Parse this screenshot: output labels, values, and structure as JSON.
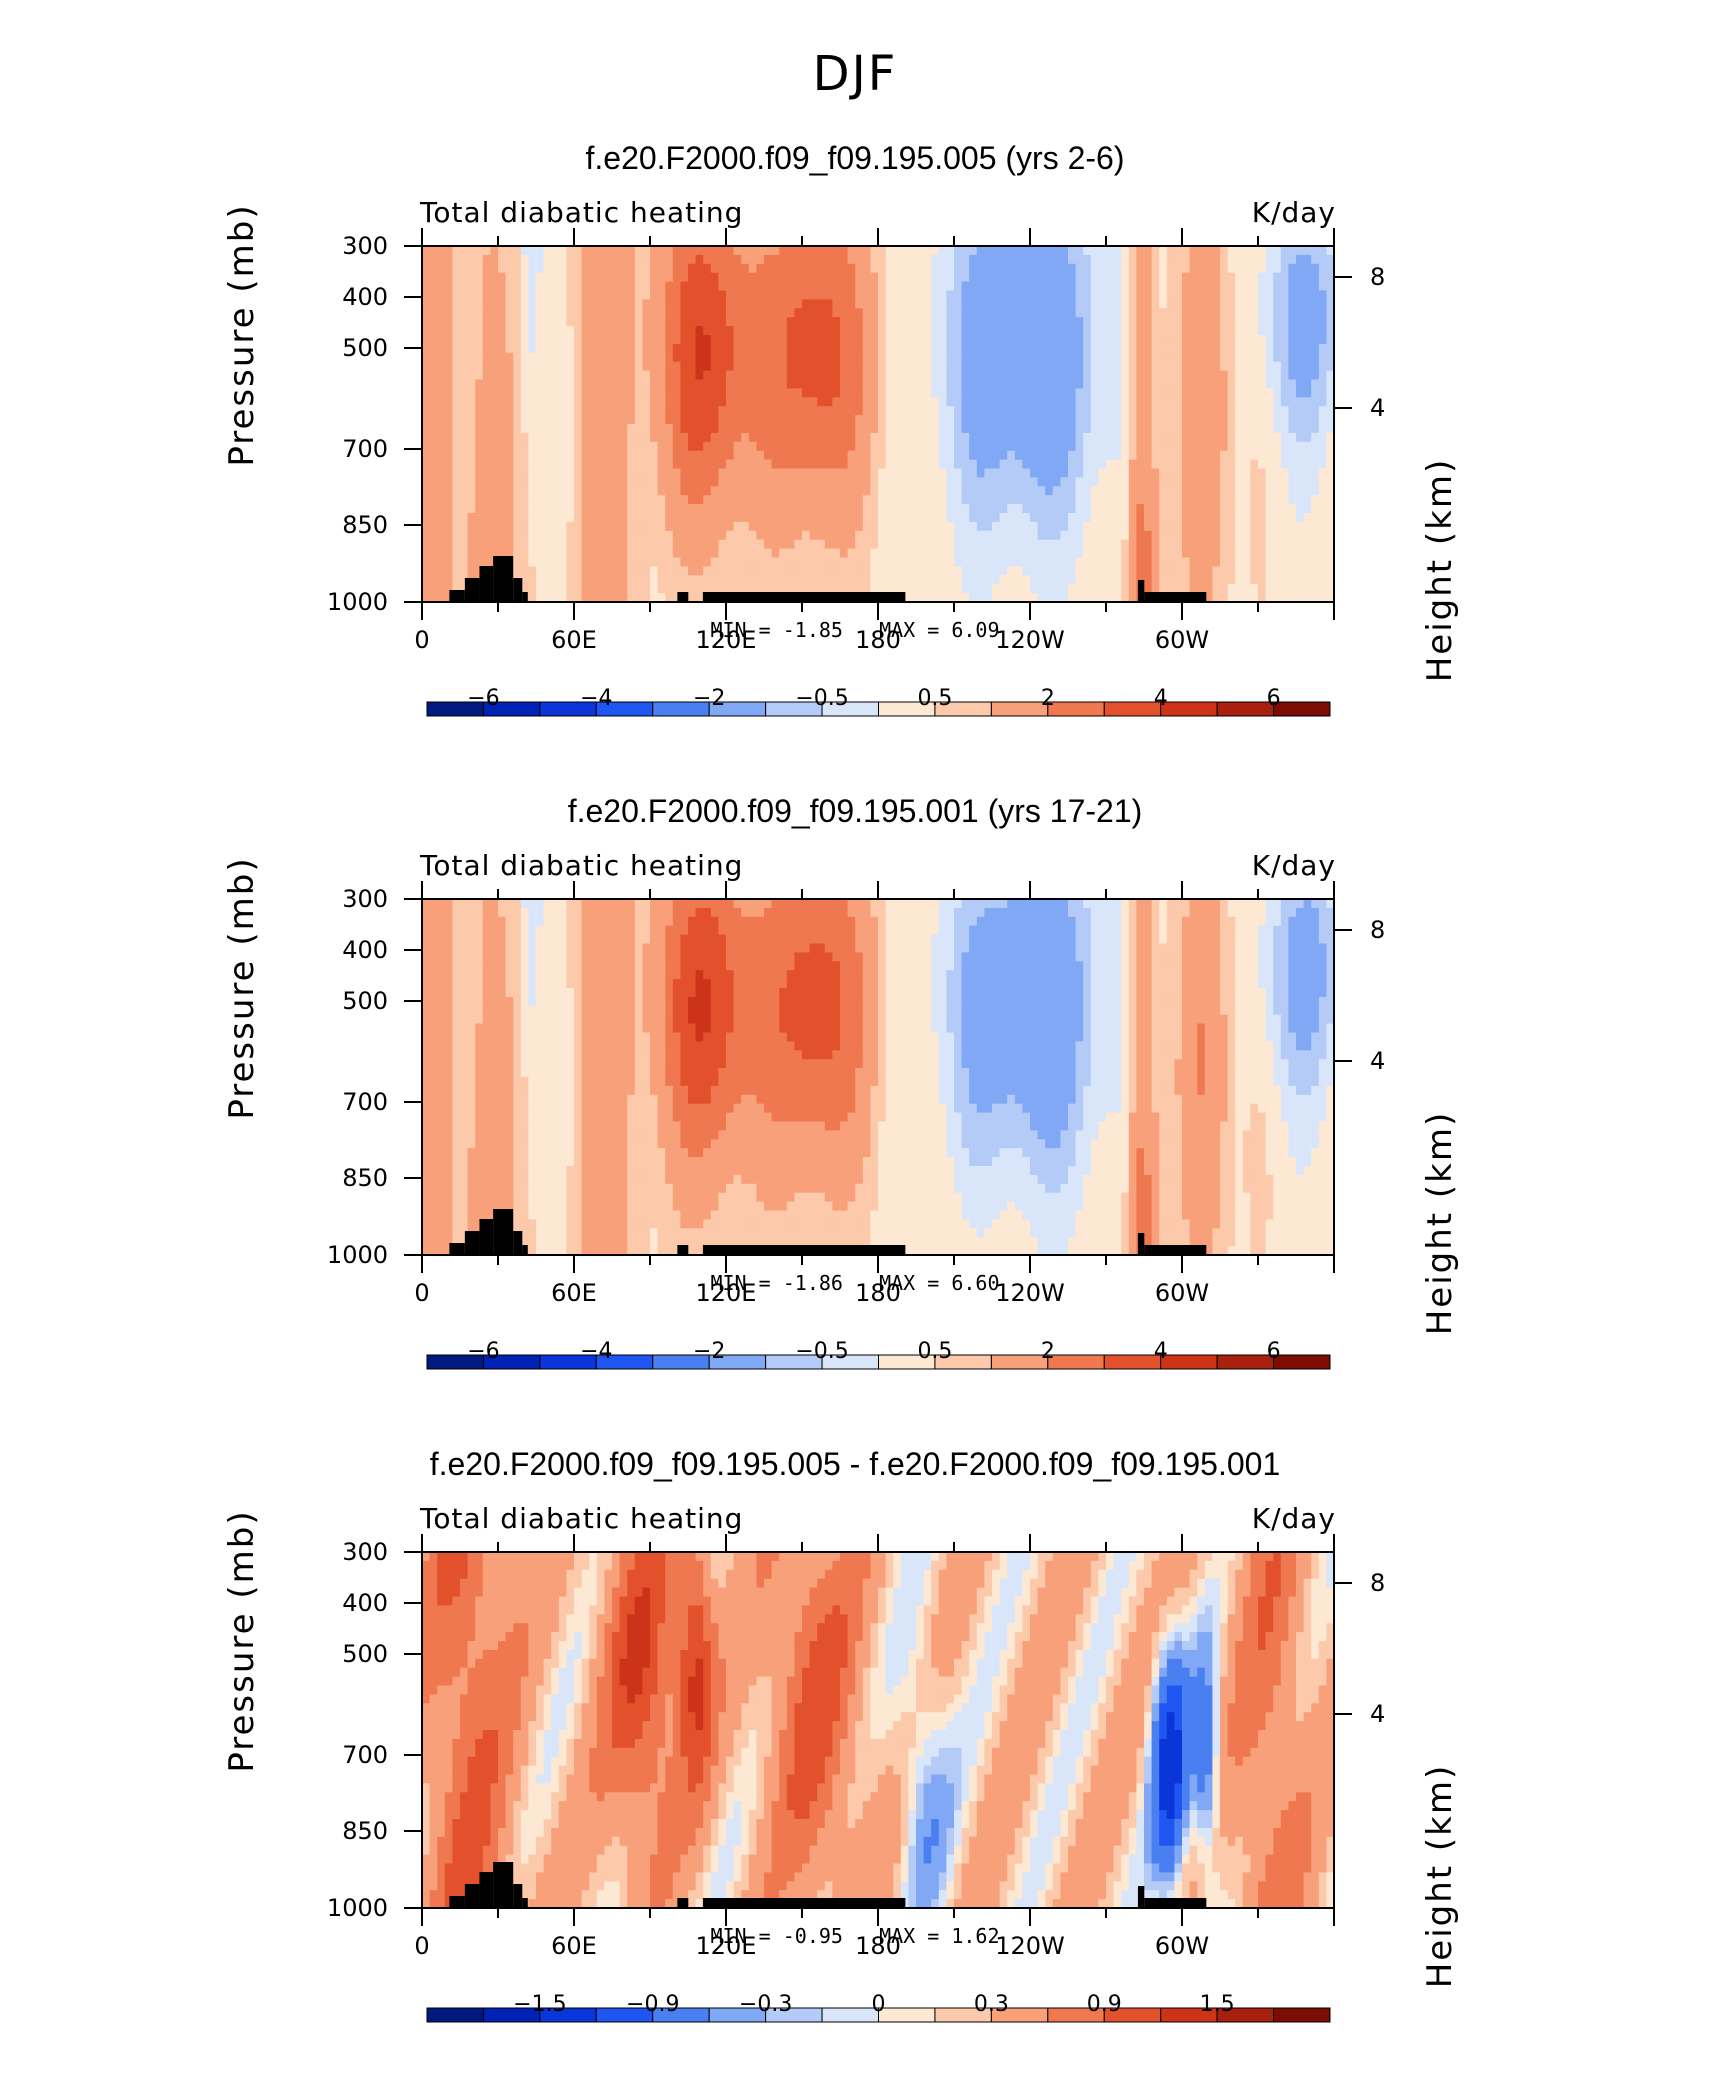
{
  "main_title": "DJF",
  "chart_data": [
    {
      "type": "heatmap",
      "title": "f.e20.F2000.f09_f09.195.005 (yrs 2-6)",
      "variable_label": "Total diabatic heating",
      "units": "K/day",
      "ylabel": "Pressure (mb)",
      "ylabel_right": "Height (km)",
      "yticks": [
        "300",
        "400",
        "500",
        "700",
        "850",
        "1000"
      ],
      "yticks_right": [
        "8",
        "4"
      ],
      "xticks": [
        "0",
        "60E",
        "120E",
        "180",
        "120W",
        "60W"
      ],
      "min_label": "MIN =",
      "min_value": "-1.85",
      "max_label": "MAX =",
      "max_value": "6.09",
      "colorbar_levels": [
        "−6",
        "−4",
        "−2",
        "−0.5",
        "0.5",
        "2",
        "4",
        "6"
      ],
      "colors": [
        "#001a80",
        "#0022b5",
        "#0a35d8",
        "#1f55f0",
        "#4a7ff2",
        "#80a8f4",
        "#b4cbf7",
        "#d9e6fa",
        "#fde8d3",
        "#fcc9ab",
        "#f7a07a",
        "#f07850",
        "#e3512c",
        "#cc3318",
        "#a8200e",
        "#7d0c05"
      ]
    },
    {
      "type": "heatmap",
      "title": "f.e20.F2000.f09_f09.195.001 (yrs 17-21)",
      "variable_label": "Total diabatic heating",
      "units": "K/day",
      "ylabel": "Pressure (mb)",
      "ylabel_right": "Height (km)",
      "yticks": [
        "300",
        "400",
        "500",
        "700",
        "850",
        "1000"
      ],
      "yticks_right": [
        "8",
        "4"
      ],
      "xticks": [
        "0",
        "60E",
        "120E",
        "180",
        "120W",
        "60W"
      ],
      "min_label": "MIN =",
      "min_value": "-1.86",
      "max_label": "MAX =",
      "max_value": "6.60",
      "colorbar_levels": [
        "−6",
        "−4",
        "−2",
        "−0.5",
        "0.5",
        "2",
        "4",
        "6"
      ],
      "colors": [
        "#001a80",
        "#0022b5",
        "#0a35d8",
        "#1f55f0",
        "#4a7ff2",
        "#80a8f4",
        "#b4cbf7",
        "#d9e6fa",
        "#fde8d3",
        "#fcc9ab",
        "#f7a07a",
        "#f07850",
        "#e3512c",
        "#cc3318",
        "#a8200e",
        "#7d0c05"
      ]
    },
    {
      "type": "heatmap",
      "title": "f.e20.F2000.f09_f09.195.005 - f.e20.F2000.f09_f09.195.001",
      "variable_label": "Total diabatic heating",
      "units": "K/day",
      "ylabel": "Pressure (mb)",
      "ylabel_right": "Height (km)",
      "yticks": [
        "300",
        "400",
        "500",
        "700",
        "850",
        "1000"
      ],
      "yticks_right": [
        "8",
        "4"
      ],
      "xticks": [
        "0",
        "60E",
        "120E",
        "180",
        "120W",
        "60W"
      ],
      "min_label": "MIN =",
      "min_value": "-0.95",
      "max_label": "MAX =",
      "max_value": "1.62",
      "colorbar_levels": [
        "−1.5",
        "−0.9",
        "−0.3",
        "0",
        "0.3",
        "0.9",
        "1.5"
      ],
      "colors": [
        "#001a80",
        "#0022b5",
        "#0a35d8",
        "#1f55f0",
        "#4a7ff2",
        "#80a8f4",
        "#b4cbf7",
        "#d9e6fa",
        "#fde8d3",
        "#fcc9ab",
        "#f7a07a",
        "#f07850",
        "#e3512c",
        "#cc3318",
        "#a8200e",
        "#7d0c05"
      ]
    }
  ]
}
